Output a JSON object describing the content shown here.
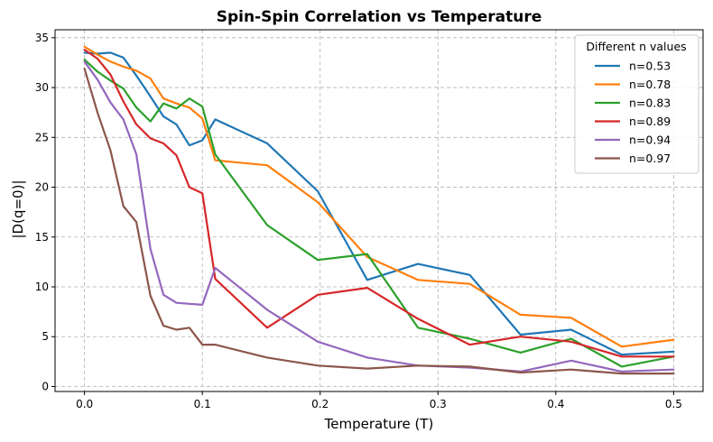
{
  "chart_data": {
    "type": "line",
    "title": "Spin-Spin Correlation vs Temperature",
    "xlabel": "Temperature (T)",
    "ylabel": "|D(q=0)|",
    "xlim": [
      -0.025,
      0.525
    ],
    "ylim": [
      -0.5,
      35.8
    ],
    "xticks": [
      0.0,
      0.1,
      0.2,
      0.3,
      0.4,
      0.5
    ],
    "xtick_labels": [
      "0.0",
      "0.1",
      "0.2",
      "0.3",
      "0.4",
      "0.5"
    ],
    "yticks": [
      0,
      5,
      10,
      15,
      20,
      25,
      30,
      35
    ],
    "ytick_labels": [
      "0",
      "5",
      "10",
      "15",
      "20",
      "25",
      "30",
      "35"
    ],
    "grid": true,
    "legend": {
      "title": "Different n values",
      "position": "top-right"
    },
    "series": [
      {
        "name": "n=0.53",
        "color": "#1f77b4",
        "points": [
          [
            0.0,
            33.5
          ],
          [
            0.011,
            33.4
          ],
          [
            0.022,
            33.5
          ],
          [
            0.033,
            33.0
          ],
          [
            0.044,
            31.2
          ],
          [
            0.056,
            29.1
          ],
          [
            0.067,
            27.1
          ],
          [
            0.078,
            26.3
          ],
          [
            0.089,
            24.2
          ],
          [
            0.1,
            24.7
          ],
          [
            0.111,
            26.8
          ],
          [
            0.155,
            24.4
          ],
          [
            0.198,
            19.6
          ],
          [
            0.24,
            10.7
          ],
          [
            0.283,
            12.3
          ],
          [
            0.327,
            11.2
          ],
          [
            0.37,
            5.2
          ],
          [
            0.413,
            5.7
          ],
          [
            0.456,
            3.2
          ],
          [
            0.5,
            3.5
          ]
        ]
      },
      {
        "name": "n=0.78",
        "color": "#ff7f0e",
        "points": [
          [
            0.0,
            34.1
          ],
          [
            0.011,
            33.3
          ],
          [
            0.022,
            32.6
          ],
          [
            0.033,
            32.1
          ],
          [
            0.044,
            31.7
          ],
          [
            0.056,
            30.9
          ],
          [
            0.067,
            28.9
          ],
          [
            0.078,
            28.4
          ],
          [
            0.089,
            28.0
          ],
          [
            0.1,
            26.9
          ],
          [
            0.111,
            22.7
          ],
          [
            0.155,
            22.2
          ],
          [
            0.198,
            18.5
          ],
          [
            0.24,
            13.0
          ],
          [
            0.283,
            10.7
          ],
          [
            0.327,
            10.3
          ],
          [
            0.37,
            7.2
          ],
          [
            0.413,
            6.9
          ],
          [
            0.456,
            4.0
          ],
          [
            0.5,
            4.7
          ]
        ]
      },
      {
        "name": "n=0.83",
        "color": "#2ca02c",
        "points": [
          [
            0.0,
            32.8
          ],
          [
            0.011,
            31.6
          ],
          [
            0.022,
            30.7
          ],
          [
            0.033,
            29.9
          ],
          [
            0.044,
            28.0
          ],
          [
            0.056,
            26.6
          ],
          [
            0.067,
            28.4
          ],
          [
            0.078,
            27.9
          ],
          [
            0.089,
            28.9
          ],
          [
            0.1,
            28.1
          ],
          [
            0.111,
            23.3
          ],
          [
            0.155,
            16.2
          ],
          [
            0.198,
            12.7
          ],
          [
            0.24,
            13.3
          ],
          [
            0.283,
            5.9
          ],
          [
            0.327,
            4.8
          ],
          [
            0.37,
            3.4
          ],
          [
            0.413,
            4.8
          ],
          [
            0.456,
            2.0
          ],
          [
            0.5,
            3.0
          ]
        ]
      },
      {
        "name": "n=0.89",
        "color": "#d62728",
        "points": [
          [
            0.0,
            33.8
          ],
          [
            0.011,
            32.9
          ],
          [
            0.022,
            31.3
          ],
          [
            0.033,
            28.6
          ],
          [
            0.044,
            26.3
          ],
          [
            0.056,
            24.9
          ],
          [
            0.067,
            24.4
          ],
          [
            0.078,
            23.2
          ],
          [
            0.089,
            20.0
          ],
          [
            0.1,
            19.4
          ],
          [
            0.111,
            10.8
          ],
          [
            0.155,
            5.9
          ],
          [
            0.198,
            9.2
          ],
          [
            0.24,
            9.9
          ],
          [
            0.283,
            6.8
          ],
          [
            0.327,
            4.2
          ],
          [
            0.37,
            5.0
          ],
          [
            0.413,
            4.5
          ],
          [
            0.456,
            3.0
          ],
          [
            0.5,
            3.0
          ]
        ]
      },
      {
        "name": "n=0.94",
        "color": "#9467bd",
        "points": [
          [
            0.0,
            32.6
          ],
          [
            0.011,
            30.8
          ],
          [
            0.022,
            28.5
          ],
          [
            0.033,
            26.8
          ],
          [
            0.044,
            23.3
          ],
          [
            0.056,
            13.8
          ],
          [
            0.067,
            9.2
          ],
          [
            0.078,
            8.4
          ],
          [
            0.089,
            8.3
          ],
          [
            0.1,
            8.2
          ],
          [
            0.111,
            11.9
          ],
          [
            0.155,
            7.7
          ],
          [
            0.198,
            4.5
          ],
          [
            0.24,
            2.9
          ],
          [
            0.283,
            2.1
          ],
          [
            0.327,
            1.9
          ],
          [
            0.37,
            1.5
          ],
          [
            0.413,
            2.6
          ],
          [
            0.456,
            1.5
          ],
          [
            0.5,
            1.7
          ]
        ]
      },
      {
        "name": "n=0.97",
        "color": "#8c564b",
        "points": [
          [
            0.0,
            31.9
          ],
          [
            0.011,
            27.5
          ],
          [
            0.022,
            23.7
          ],
          [
            0.033,
            18.1
          ],
          [
            0.044,
            16.5
          ],
          [
            0.056,
            9.1
          ],
          [
            0.067,
            6.1
          ],
          [
            0.078,
            5.7
          ],
          [
            0.089,
            5.9
          ],
          [
            0.1,
            4.2
          ],
          [
            0.111,
            4.2
          ],
          [
            0.155,
            2.9
          ],
          [
            0.198,
            2.1
          ],
          [
            0.24,
            1.8
          ],
          [
            0.283,
            2.1
          ],
          [
            0.327,
            2.0
          ],
          [
            0.37,
            1.4
          ],
          [
            0.413,
            1.7
          ],
          [
            0.456,
            1.3
          ],
          [
            0.5,
            1.3
          ]
        ]
      }
    ]
  }
}
